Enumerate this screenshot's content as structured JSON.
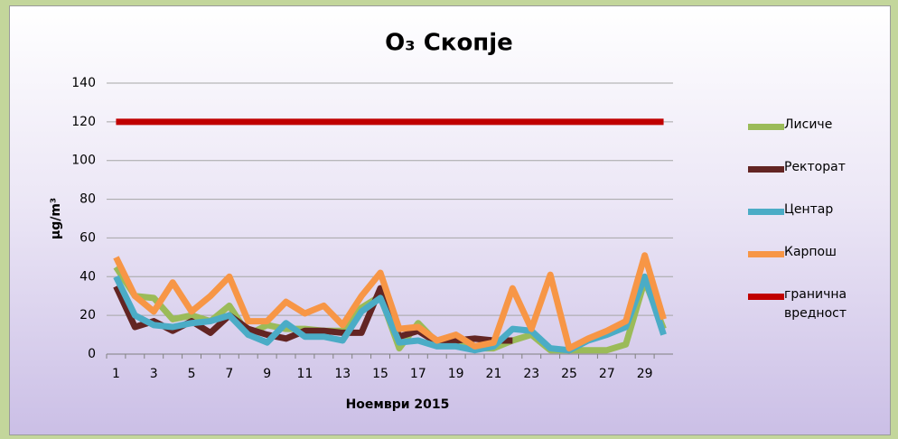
{
  "chart_data": {
    "type": "line",
    "title": "O₃ Скопје",
    "x_label": "Ноември 2015",
    "y_label": "μg/m³",
    "categories": [
      1,
      null,
      3,
      null,
      5,
      null,
      7,
      null,
      9,
      null,
      11,
      null,
      13,
      null,
      15,
      null,
      17,
      null,
      19,
      null,
      21,
      null,
      23,
      null,
      25,
      null,
      27,
      null,
      29,
      null
    ],
    "ylim": [
      0,
      140
    ],
    "yticks": [
      0,
      20,
      40,
      60,
      80,
      100,
      120,
      140
    ],
    "grid": true,
    "legend": "right",
    "series": [
      {
        "name": "Лисиче",
        "color": "#9bbb59",
        "values": [
          45,
          30,
          29,
          18,
          20,
          17,
          25,
          10,
          15,
          13,
          13,
          12,
          12,
          24,
          30,
          3,
          16,
          6,
          5,
          3,
          3,
          7,
          10,
          2,
          2,
          2,
          2,
          5,
          38,
          13
        ]
      },
      {
        "name": "Ректорат",
        "color": "#632523",
        "values": [
          35,
          14,
          17,
          12,
          17,
          11,
          20,
          13,
          10,
          8,
          12,
          12,
          11,
          11,
          34,
          9,
          12,
          6,
          7,
          8,
          7,
          7,
          null,
          null,
          null,
          null,
          null,
          null,
          null,
          null
        ]
      },
      {
        "name": "Центар",
        "color": "#4bacc6",
        "values": [
          40,
          20,
          15,
          14,
          16,
          17,
          20,
          10,
          6,
          16,
          9,
          9,
          7,
          22,
          29,
          6,
          7,
          4,
          4,
          2,
          4,
          13,
          12,
          3,
          2,
          7,
          10,
          14,
          40,
          10
        ]
      },
      {
        "name": "Карпош",
        "color": "#f79646",
        "values": [
          50,
          30,
          22,
          37,
          22,
          30,
          40,
          17,
          17,
          27,
          21,
          25,
          15,
          30,
          42,
          13,
          14,
          7,
          10,
          4,
          6,
          34,
          13,
          41,
          3,
          8,
          12,
          17,
          51,
          18
        ]
      },
      {
        "name": "гранична вредност",
        "color": "#c00000",
        "values": [
          120,
          120,
          120,
          120,
          120,
          120,
          120,
          120,
          120,
          120,
          120,
          120,
          120,
          120,
          120,
          120,
          120,
          120,
          120,
          120,
          120,
          120,
          120,
          120,
          120,
          120,
          120,
          120,
          120,
          120
        ]
      }
    ]
  }
}
